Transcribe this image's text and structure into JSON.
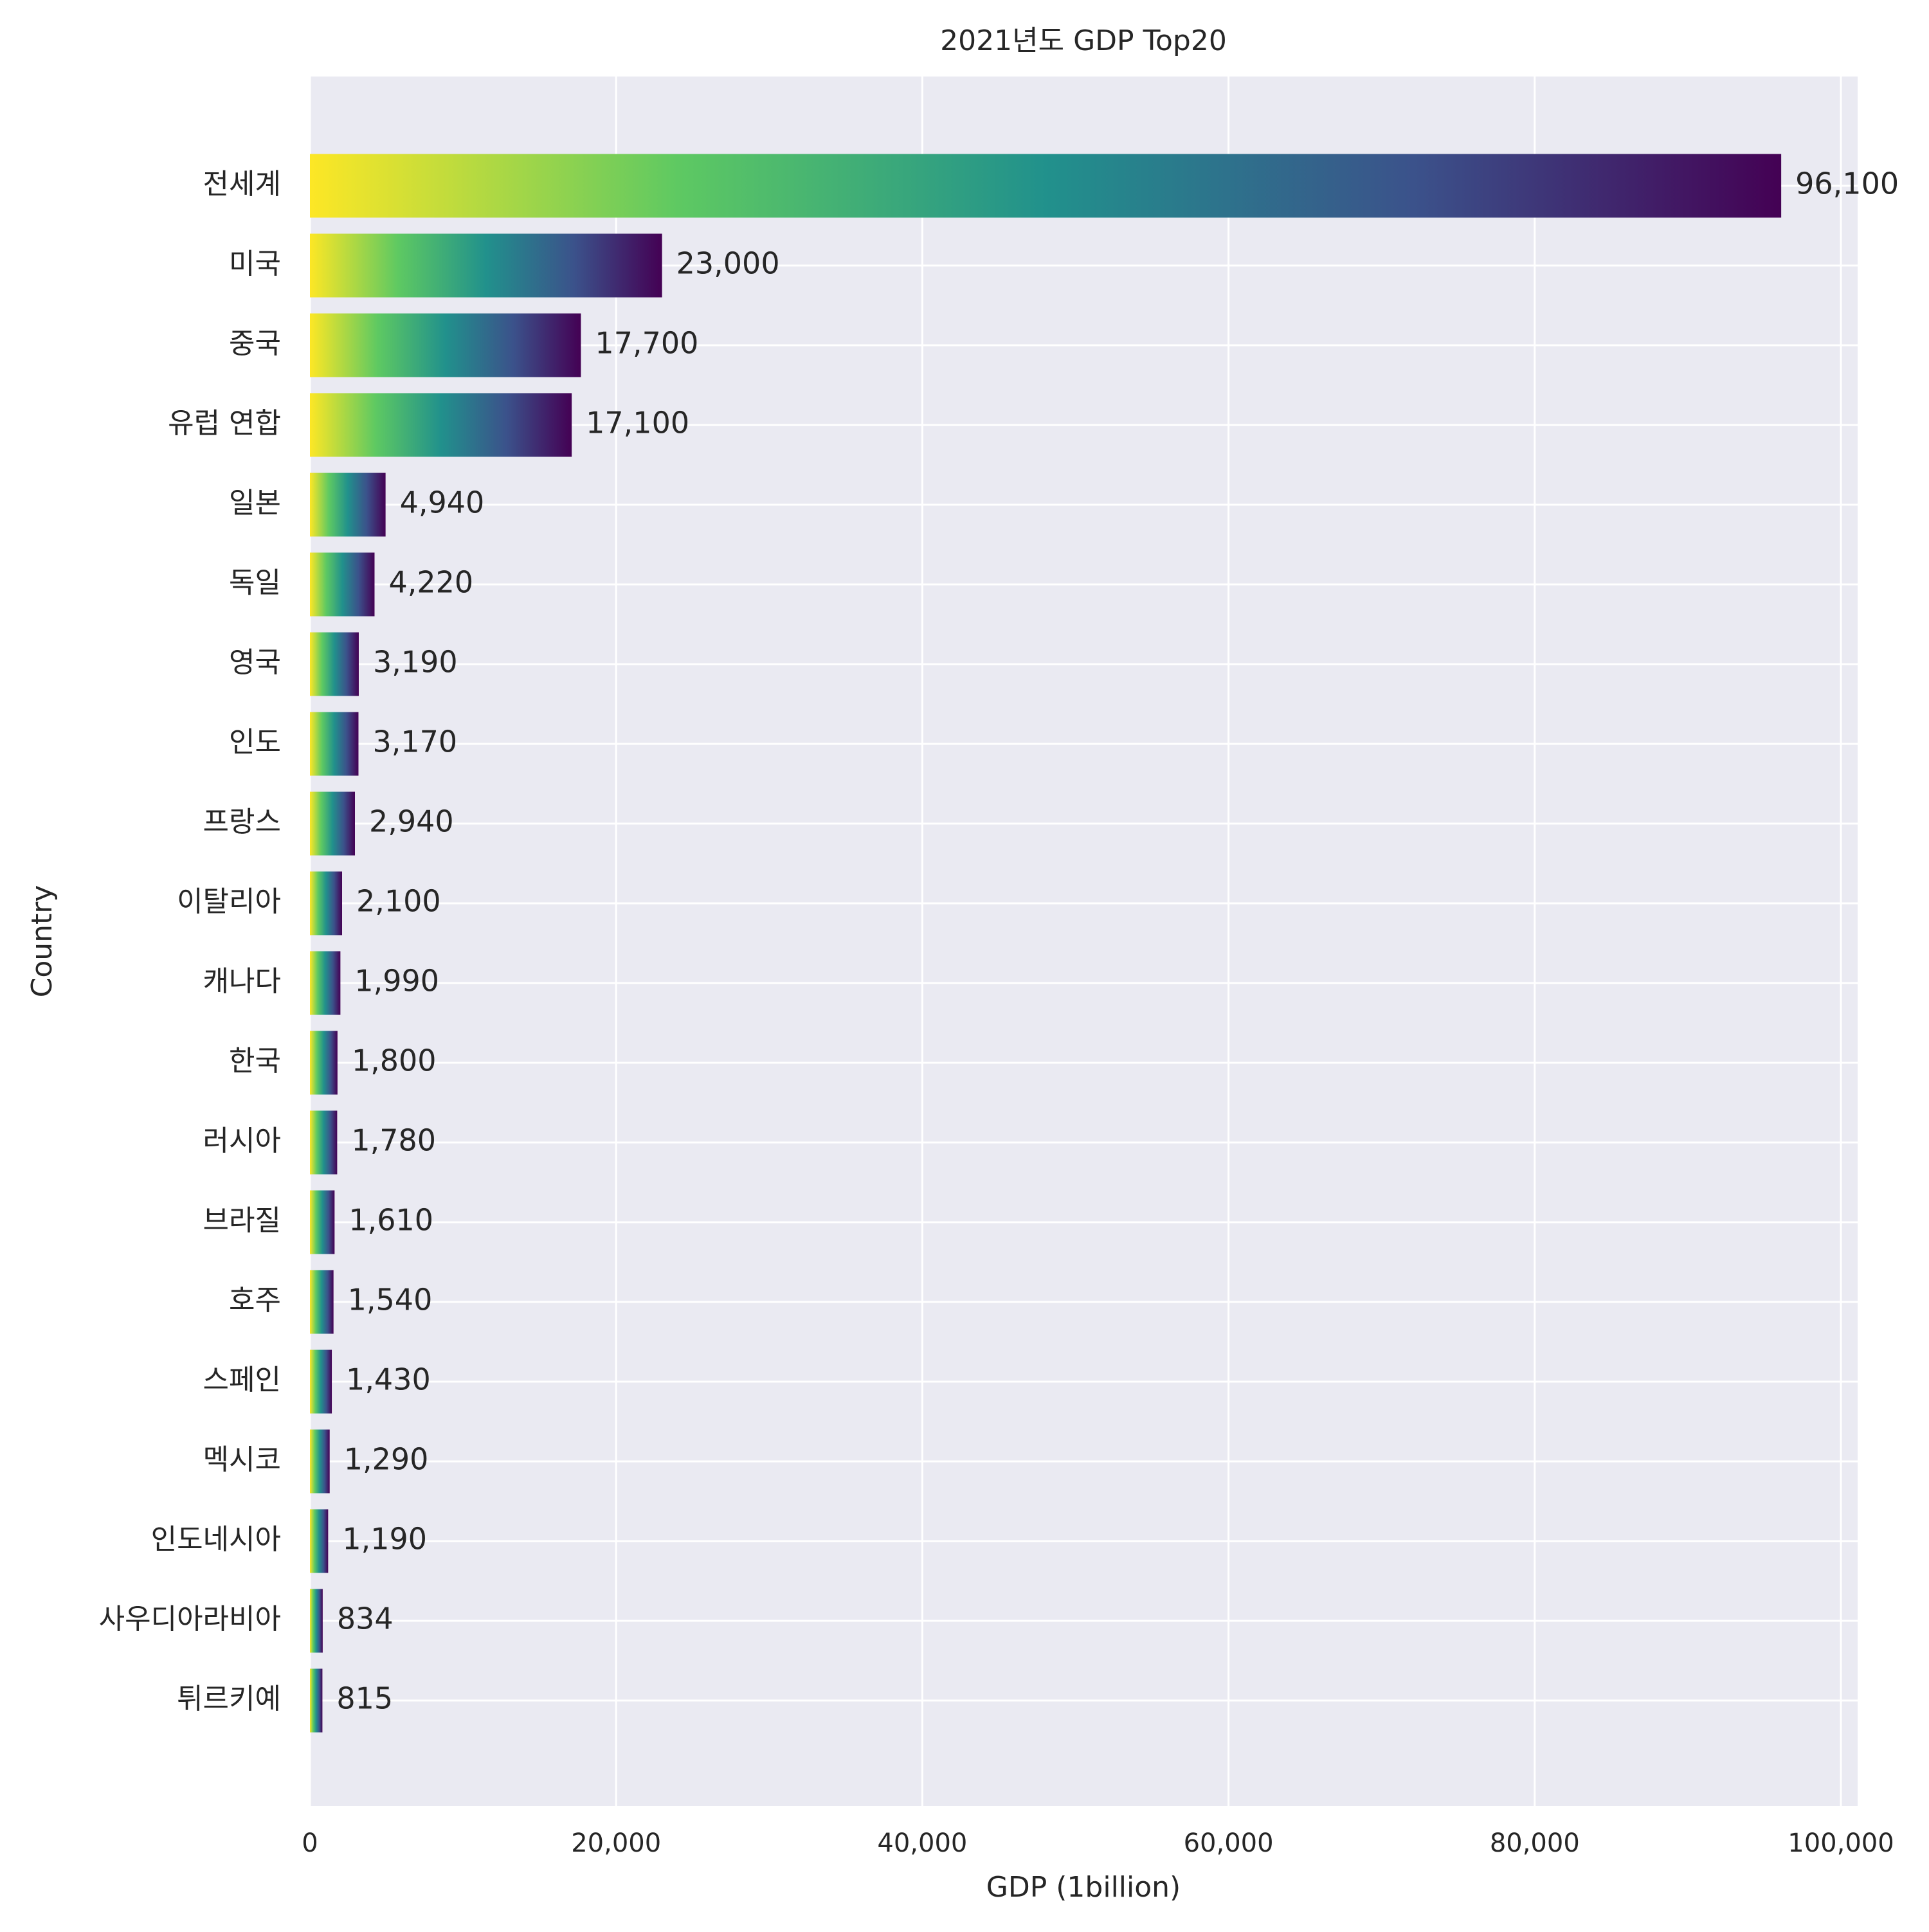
{
  "chart_data": {
    "type": "bar",
    "orientation": "horizontal",
    "title": "2021년도 GDP Top20",
    "xlabel": "GDP (1billion)",
    "ylabel": "Country",
    "xlim": [
      0,
      100000
    ],
    "x_ticks": [
      0,
      20000,
      40000,
      60000,
      80000,
      100000
    ],
    "x_tick_labels": [
      "0",
      "20,000",
      "40,000",
      "60,000",
      "80,000",
      "100,000"
    ],
    "grid": true,
    "colormap": "viridis (yellow to purple gradient along each bar)",
    "gradient_colors": [
      "#fde725",
      "#5ec962",
      "#21918c",
      "#3b528b",
      "#440154"
    ],
    "plot_background": "#eaeaf2",
    "categories": [
      "전세계",
      "미국",
      "중국",
      "유럽 연합",
      "일본",
      "독일",
      "영국",
      "인도",
      "프랑스",
      "이탈리아",
      "캐나다",
      "한국",
      "러시아",
      "브라질",
      "호주",
      "스페인",
      "멕시코",
      "인도네시아",
      "사우디아라비아",
      "튀르키예"
    ],
    "values": [
      96100,
      23000,
      17700,
      17100,
      4940,
      4220,
      3190,
      3170,
      2940,
      2100,
      1990,
      1800,
      1780,
      1610,
      1540,
      1430,
      1290,
      1190,
      834,
      815
    ],
    "value_labels": [
      "96,100",
      "23,000",
      "17,700",
      "17,100",
      "4,940",
      "4,220",
      "3,190",
      "3,170",
      "2,940",
      "2,100",
      "1,990",
      "1,800",
      "1,780",
      "1,610",
      "1,540",
      "1,430",
      "1,290",
      "1,190",
      "834",
      "815"
    ]
  }
}
